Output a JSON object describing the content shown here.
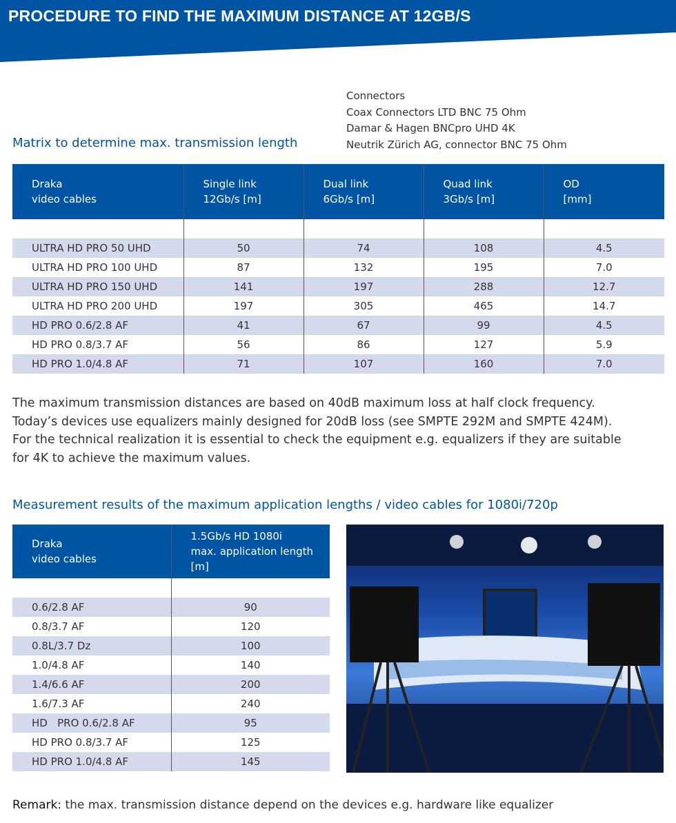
{
  "header": {
    "title": "PROCEDURE TO FIND THE MAXIMUM DISTANCE AT 12GB/S"
  },
  "connectors": {
    "heading": "Connectors",
    "items": [
      "Coax Connectors LTD BNC 75 Ohm",
      "Damar & Hagen BNCpro UHD 4K",
      "Neutrik Zürich AG, connector BNC 75 Ohm"
    ]
  },
  "matrix": {
    "heading": "Matrix to determine max. transmission length",
    "columns": [
      [
        "Draka",
        "video cables"
      ],
      [
        "Single link",
        "12Gb/s [m]"
      ],
      [
        "Dual link",
        "6Gb/s [m]"
      ],
      [
        "Quad link",
        "3Gb/s [m]"
      ],
      [
        "OD",
        "[mm]"
      ]
    ],
    "rows": [
      [
        "ULTRA HD PRO 50 UHD",
        "50",
        "74",
        "108",
        "4.5"
      ],
      [
        "ULTRA HD PRO 100 UHD",
        "87",
        "132",
        "195",
        "7.0"
      ],
      [
        "ULTRA HD PRO 150 UHD",
        "141",
        "197",
        "288",
        "12.7"
      ],
      [
        "ULTRA HD PRO 200 UHD",
        "197",
        "305",
        "465",
        "14.7"
      ],
      [
        "HD PRO 0.6/2.8 AF",
        "41",
        "67",
        "99",
        "4.5"
      ],
      [
        "HD PRO 0.8/3.7 AF",
        "56",
        "86",
        "127",
        "5.9"
      ],
      [
        "HD PRO 1.0/4.8 AF",
        "71",
        "107",
        "160",
        "7.0"
      ]
    ]
  },
  "paragraph": [
    "The maximum transmission distances are based on 40dB maximum loss at half clock frequency.",
    "Today’s devices use equalizers mainly designed for 20dB loss (see SMPTE 292M and SMPTE 424M).",
    "For the technical realization it is essential to check the equipment e.g. equalizers if they are suitable",
    "for 4K to achieve the maximum values."
  ],
  "measurement": {
    "heading": "Measurement results of the maximum application lengths / video cables for 1080i/720p",
    "columns": [
      [
        "Draka",
        "video cables"
      ],
      [
        "1.5Gb/s HD 1080i",
        "max. application length [m]"
      ]
    ],
    "rows": [
      [
        "0.6/2.8 AF",
        "90"
      ],
      [
        "0.8/3.7 AF",
        "120"
      ],
      [
        "0.8L/3.7 Dz",
        "100"
      ],
      [
        "1.0/4.8 AF",
        "140"
      ],
      [
        "1.4/6.6 AF",
        "200"
      ],
      [
        "1.6/7.3 AF",
        "240"
      ],
      [
        "HD   PRO 0.6/2.8 AF",
        "95"
      ],
      [
        "HD PRO 0.8/3.7 AF",
        "125"
      ],
      [
        "HD PRO 1.0/4.8 AF",
        "145"
      ]
    ]
  },
  "remark": {
    "label": "Remark:",
    "text": " the max. transmission distance depend on the devices e.g. hardware like equalizer"
  },
  "colors": {
    "brand_blue": "#0054a4",
    "stripe": "#d5d9ec"
  }
}
